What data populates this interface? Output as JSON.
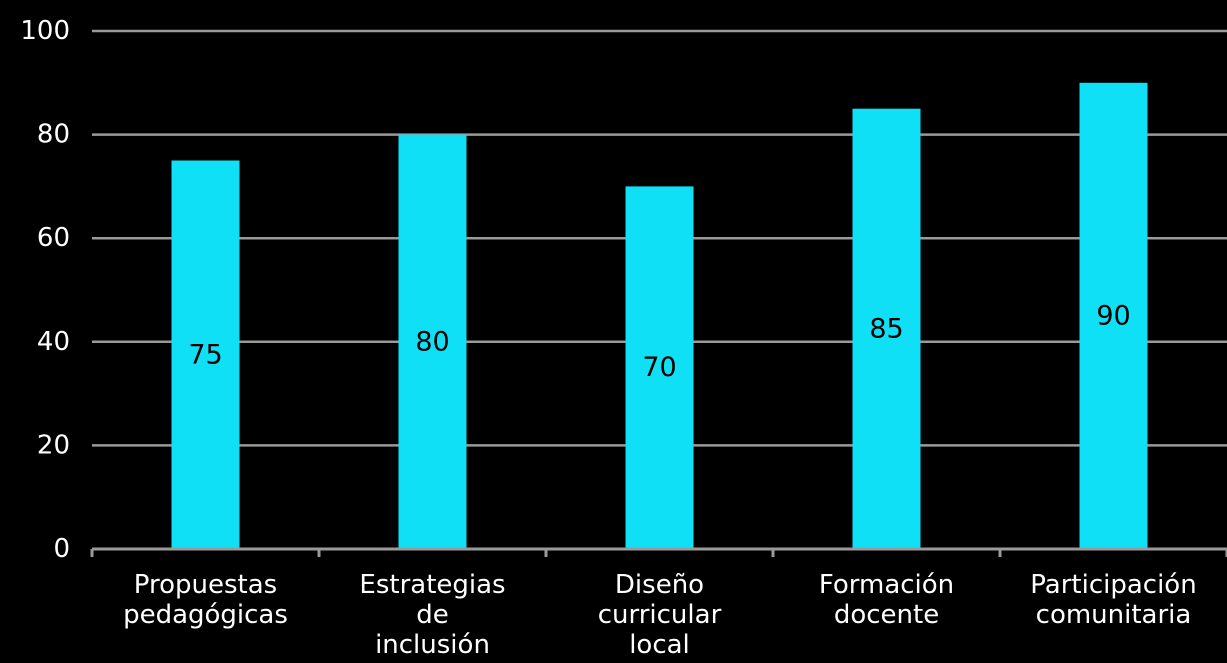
{
  "chart_data": {
    "type": "bar",
    "title": "",
    "xlabel": "",
    "ylabel": "",
    "categories": [
      "Propuestas pedagógicas",
      "Estrategias de inclusión",
      "Diseño curricular local",
      "Formación docente",
      "Participación comunitaria"
    ],
    "category_lines": [
      [
        "Propuestas",
        "pedagógicas"
      ],
      [
        "Estrategias",
        "de",
        "inclusión"
      ],
      [
        "Diseño",
        "curricular",
        "local"
      ],
      [
        "Formación",
        "docente"
      ],
      [
        "Participación",
        "comunitaria"
      ]
    ],
    "values": [
      75,
      80,
      70,
      85,
      90
    ],
    "data_labels": [
      "75",
      "80",
      "70",
      "85",
      "90"
    ],
    "ylim": [
      0,
      100
    ],
    "yticks": [
      "0",
      "20",
      "40",
      "60",
      "80",
      "100"
    ],
    "ytick_values": [
      0,
      20,
      40,
      60,
      80,
      100
    ],
    "grid": true,
    "legend": "none",
    "colors": {
      "background": "#000000",
      "bar": "#0fe0f5",
      "grid": "#9a9a9a",
      "axis": "#9a9a9a",
      "text": "#ffffff",
      "data_label": "#000000"
    }
  }
}
